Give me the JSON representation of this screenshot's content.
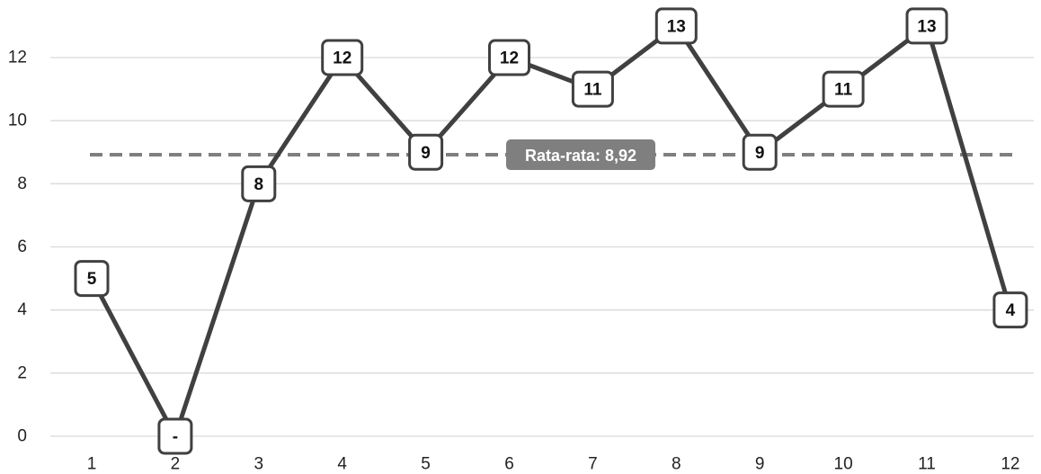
{
  "chart_data": {
    "type": "line",
    "categories": [
      "1",
      "2",
      "3",
      "4",
      "5",
      "6",
      "7",
      "8",
      "9",
      "10",
      "11",
      "12"
    ],
    "values": [
      5,
      0,
      8,
      12,
      9,
      12,
      11,
      13,
      9,
      11,
      13,
      4
    ],
    "data_labels": [
      "5",
      "-",
      "8",
      "12",
      "9",
      "12",
      "11",
      "13",
      "9",
      "11",
      "13",
      "4"
    ],
    "y_ticks": [
      "0",
      "2",
      "4",
      "6",
      "8",
      "10",
      "12"
    ],
    "ylim": [
      0,
      13
    ],
    "grid": true,
    "average": {
      "value": 8.92,
      "label": "Rata-rata: 8,92"
    },
    "colors": {
      "line": "#404040",
      "grid": "#d9d9d9",
      "average_line": "#7f7f7f",
      "average_label_bg": "#7f7f7f",
      "label_border": "#404040"
    }
  }
}
